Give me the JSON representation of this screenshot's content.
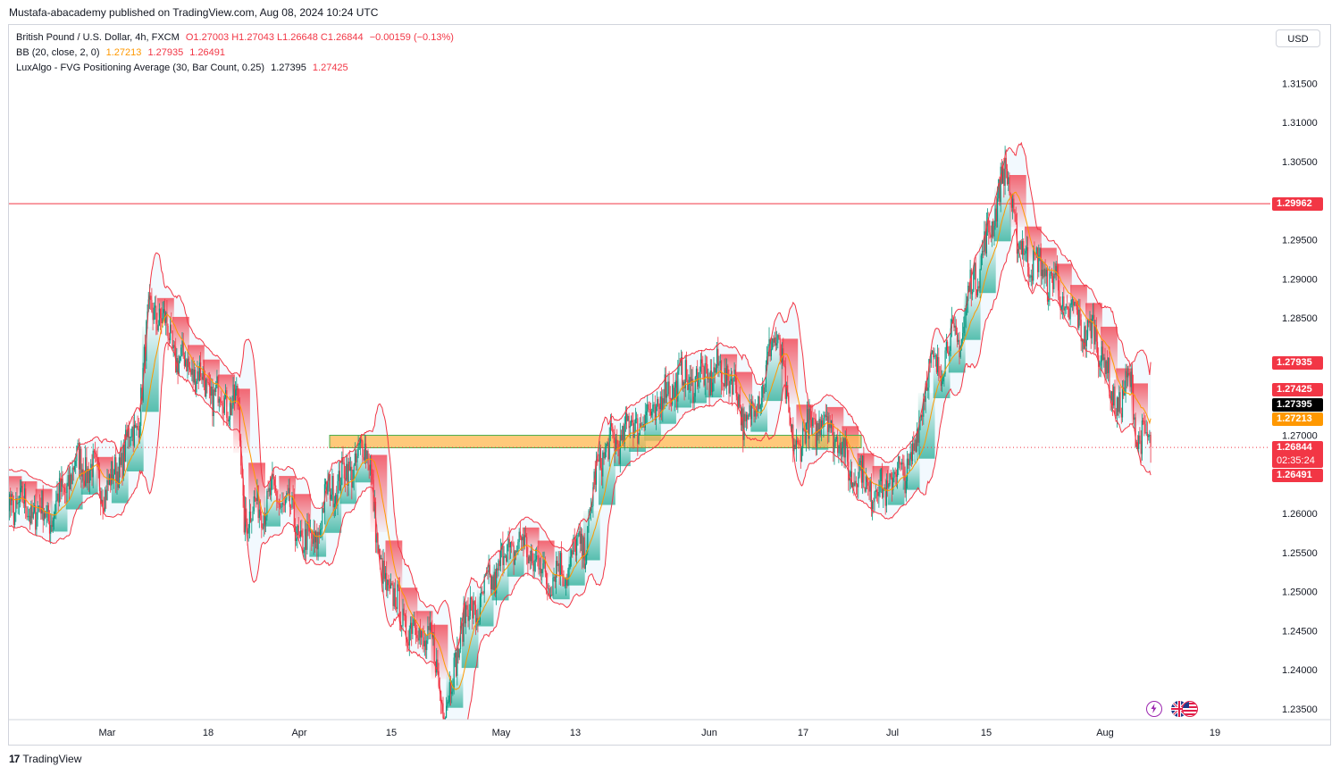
{
  "publish_line": "Mustafa-abacademy published on TradingView.com, Aug 08, 2024 10:24 UTC",
  "legend": {
    "symbol": "British Pound / U.S. Dollar, 4h, FXCM",
    "ohlc": "O1.27003  H1.27043  L1.26648  C1.26844",
    "change": "−0.00159 (−0.13%)",
    "bb_label": "BB (20, close, 2, 0)",
    "bb_basis": "1.27213",
    "bb_upper": "1.27935",
    "bb_lower": "1.26491",
    "fvg_label": "LuxAlgo - FVG Positioning Average (30, Bar Count, 0.25)",
    "fvg_bull": "1.27395",
    "fvg_bear": "1.27425"
  },
  "currency_button": "USD",
  "price_tags": {
    "resistance": "1.29962",
    "bb_upper": "1.27935",
    "fvg_bear": "1.27425",
    "fvg_bull": "1.27395",
    "bb_basis": "1.27213",
    "last_price": "1.26844",
    "countdown": "02:35:24",
    "bb_lower": "1.26491"
  },
  "footer_brand": "TradingView",
  "footer_logo_glyph": "17",
  "icons": [
    "lightning-icon",
    "uk-flag-icon",
    "us-flag-icon",
    "tradingview-logo-icon"
  ],
  "colors": {
    "up": "#089981",
    "down": "#f23645",
    "bb_band": "#f23645",
    "bb_basis": "#ff9800",
    "fvg_zone": "#ffb74d",
    "fvg_zone_border": "#4caf50",
    "resistance": "#f23645",
    "fvg_bull_fill": "#22ab94",
    "fvg_bear_fill": "#f23645"
  },
  "chart_data": {
    "type": "candlestick",
    "symbol": "GBPUSD",
    "timeframe": "4h",
    "y_axis": {
      "ticks": [
        "1.31500",
        "1.31000",
        "1.30500",
        "1.29500",
        "1.29000",
        "1.28500",
        "1.27000",
        "1.26000",
        "1.25500",
        "1.25000",
        "1.24500",
        "1.24000",
        "1.23500"
      ],
      "range": [
        1.2335,
        1.3185
      ]
    },
    "x_axis": {
      "ticks": [
        "Mar",
        "18",
        "Apr",
        "15",
        "May",
        "13",
        "Jun",
        "17",
        "Jul",
        "15",
        "Aug",
        "19"
      ]
    },
    "horizontal_line": {
      "price": 1.29962,
      "label": "1.29962"
    },
    "fvg_zone": {
      "top": 1.27,
      "bottom": 1.2684,
      "start_label": "Apr",
      "end_label": "Jun 27"
    },
    "path_anchors": [
      {
        "date": "Feb 21",
        "close": 1.26
      },
      {
        "date": "Feb 26",
        "close": 1.2665
      },
      {
        "date": "Mar 1",
        "close": 1.2635
      },
      {
        "date": "Mar 5",
        "close": 1.27
      },
      {
        "date": "Mar 8",
        "close": 1.286
      },
      {
        "date": "Mar 13",
        "close": 1.279
      },
      {
        "date": "Mar 18",
        "close": 1.275
      },
      {
        "date": "Mar 21",
        "close": 1.274
      },
      {
        "date": "Mar 22",
        "close": 1.26
      },
      {
        "date": "Mar 27",
        "close": 1.262
      },
      {
        "date": "Apr 1",
        "close": 1.256
      },
      {
        "date": "Apr 5",
        "close": 1.264
      },
      {
        "date": "Apr 10",
        "close": 1.268
      },
      {
        "date": "Apr 12",
        "close": 1.252
      },
      {
        "date": "Apr 16",
        "close": 1.246
      },
      {
        "date": "Apr 19",
        "close": 1.244
      },
      {
        "date": "Apr 22",
        "close": 1.236
      },
      {
        "date": "Apr 25",
        "close": 1.247
      },
      {
        "date": "May 3",
        "close": 1.256
      },
      {
        "date": "May 8",
        "close": 1.252
      },
      {
        "date": "May 10",
        "close": 1.253
      },
      {
        "date": "May 13",
        "close": 1.256
      },
      {
        "date": "May 16",
        "close": 1.268
      },
      {
        "date": "May 22",
        "close": 1.272
      },
      {
        "date": "May 28",
        "close": 1.277
      },
      {
        "date": "Jun 4",
        "close": 1.278
      },
      {
        "date": "Jun 7",
        "close": 1.272
      },
      {
        "date": "Jun 12",
        "close": 1.282
      },
      {
        "date": "Jun 14",
        "close": 1.269
      },
      {
        "date": "Jun 19",
        "close": 1.272
      },
      {
        "date": "Jun 24",
        "close": 1.265
      },
      {
        "date": "Jun 27",
        "close": 1.263
      },
      {
        "date": "Jul 2",
        "close": 1.266
      },
      {
        "date": "Jul 5",
        "close": 1.278
      },
      {
        "date": "Jul 10",
        "close": 1.283
      },
      {
        "date": "Jul 12",
        "close": 1.291
      },
      {
        "date": "Jul 17",
        "close": 1.303
      },
      {
        "date": "Jul 19",
        "close": 1.2935
      },
      {
        "date": "Jul 24",
        "close": 1.29
      },
      {
        "date": "Jul 26",
        "close": 1.286
      },
      {
        "date": "Jul 30",
        "close": 1.283
      },
      {
        "date": "Aug 1",
        "close": 1.28
      },
      {
        "date": "Aug 2",
        "close": 1.274
      },
      {
        "date": "Aug 5",
        "close": 1.276
      },
      {
        "date": "Aug 6",
        "close": 1.27
      },
      {
        "date": "Aug 8",
        "close": 1.26844
      }
    ],
    "last_candle": {
      "open": 1.27003,
      "high": 1.27043,
      "low": 1.26648,
      "close": 1.26844
    },
    "bollinger": {
      "length": 20,
      "mult": 2,
      "basis": 1.27213,
      "upper": 1.27935,
      "lower": 1.26491
    },
    "fvg_average": {
      "bull": 1.27395,
      "bear": 1.27425
    },
    "grid": false
  }
}
